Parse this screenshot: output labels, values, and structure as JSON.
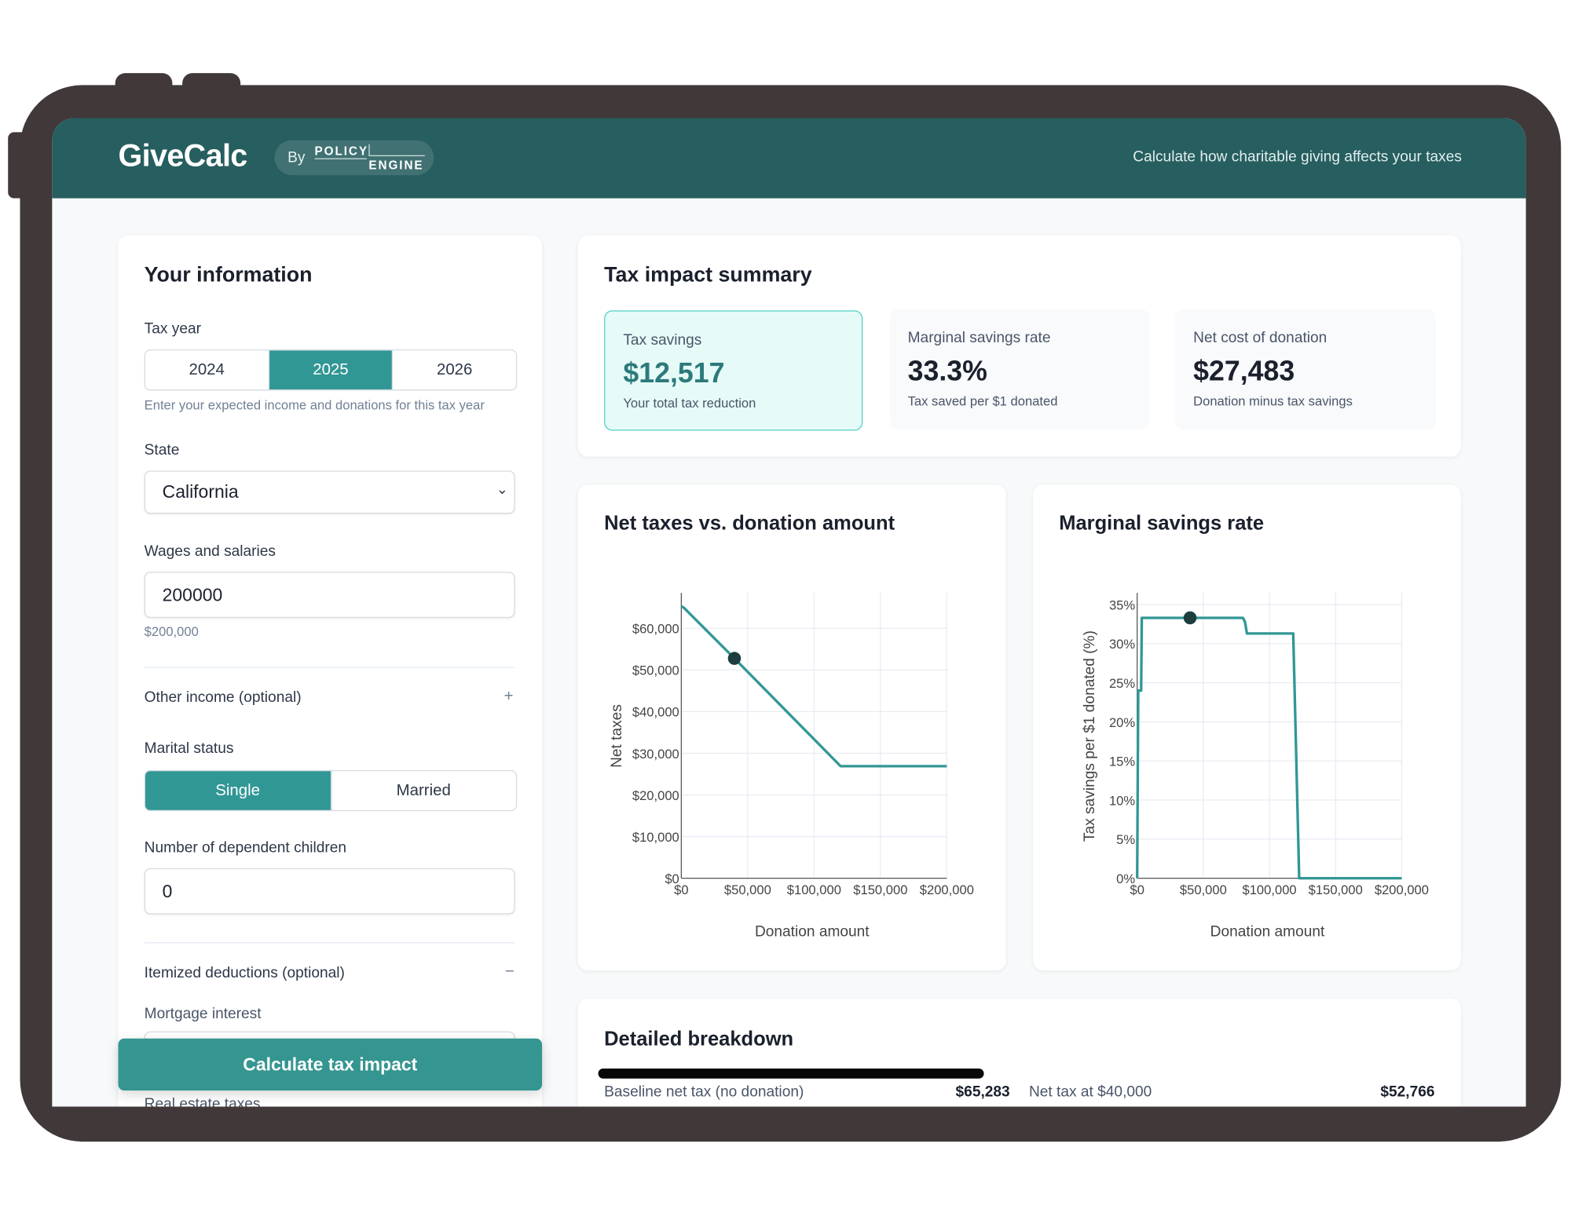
{
  "header": {
    "app_title": "GiveCalc",
    "badge_by": "By",
    "badge_logo_line1": "POLICY",
    "badge_logo_line2": "ENGINE",
    "tagline": "Calculate how charitable giving affects your taxes"
  },
  "colors": {
    "header": "#275e5f",
    "accent": "#319795",
    "frame": "#403839",
    "line": "#319795",
    "marker": "#1d3e3f"
  },
  "form": {
    "title": "Your information",
    "tax_year_label": "Tax year",
    "tax_years": [
      "2024",
      "2025",
      "2026"
    ],
    "tax_year_selected": "2025",
    "tax_year_hint": "Enter your expected income and donations for this tax year",
    "state_label": "State",
    "state_value": "California",
    "wages_label": "Wages and salaries",
    "wages_value": "200000",
    "wages_formatted": "$200,000",
    "other_income_label": "Other income (optional)",
    "other_income_icon": "+",
    "marital_label": "Marital status",
    "marital_options": [
      "Single",
      "Married"
    ],
    "marital_selected": "Single",
    "children_label": "Number of dependent children",
    "children_value": "0",
    "itemized_label": "Itemized deductions (optional)",
    "itemized_icon": "−",
    "mortgage_label": "Mortgage interest",
    "real_estate_label": "Real estate taxes",
    "calculate_button": "Calculate tax impact"
  },
  "summary": {
    "title": "Tax impact summary",
    "metrics": [
      {
        "label": "Tax savings",
        "value": "$12,517",
        "sub": "Your total tax reduction"
      },
      {
        "label": "Marginal savings rate",
        "value": "33.3%",
        "sub": "Tax saved per $1 donated"
      },
      {
        "label": "Net cost of donation",
        "value": "$27,483",
        "sub": "Donation minus tax savings"
      }
    ]
  },
  "breakdown": {
    "title": "Detailed breakdown",
    "rows": [
      {
        "label": "Baseline net tax (no donation)",
        "value": "$65,283"
      },
      {
        "label": "Net tax at $40,000",
        "value": "$52,766"
      }
    ]
  },
  "chart_data": [
    {
      "type": "line",
      "title": "Net taxes vs. donation amount",
      "xlabel": "Donation amount",
      "ylabel": "Net taxes",
      "xlim": [
        0,
        200000
      ],
      "ylim": [
        0,
        68500
      ],
      "xticks": [
        0,
        50000,
        100000,
        150000,
        200000
      ],
      "xtick_labels": [
        "$0",
        "$50,000",
        "$100,000",
        "$150,000",
        "$200,000"
      ],
      "yticks": [
        0,
        10000,
        20000,
        30000,
        40000,
        50000,
        60000
      ],
      "ytick_labels": [
        "$0",
        "$10,000",
        "$20,000",
        "$30,000",
        "$40,000",
        "$50,000",
        "$60,000"
      ],
      "grid": true,
      "x": [
        0,
        2000,
        40000,
        120000,
        200000
      ],
      "y": [
        65283,
        64900,
        52766,
        26900,
        26900
      ],
      "marker": {
        "x": 40000,
        "y": 52766
      }
    },
    {
      "type": "line",
      "title": "Marginal savings rate",
      "xlabel": "Donation amount",
      "ylabel": "Tax savings per $1 donated (%)",
      "xlim": [
        0,
        200000
      ],
      "ylim": [
        0,
        36.5
      ],
      "xticks": [
        0,
        50000,
        100000,
        150000,
        200000
      ],
      "xtick_labels": [
        "$0",
        "$50,000",
        "$100,000",
        "$150,000",
        "$200,000"
      ],
      "yticks": [
        0,
        5,
        10,
        15,
        20,
        25,
        30,
        35
      ],
      "ytick_labels": [
        "0%",
        "5%",
        "10%",
        "15%",
        "20%",
        "25%",
        "30%",
        "35%"
      ],
      "grid": true,
      "x": [
        0,
        800,
        3000,
        3500,
        80000,
        81500,
        83000,
        118000,
        122500,
        200000
      ],
      "y": [
        0,
        24,
        24,
        33.3,
        33.3,
        32.8,
        31.3,
        31.3,
        0,
        0
      ],
      "marker": {
        "x": 40000,
        "y": 33.3
      }
    }
  ]
}
